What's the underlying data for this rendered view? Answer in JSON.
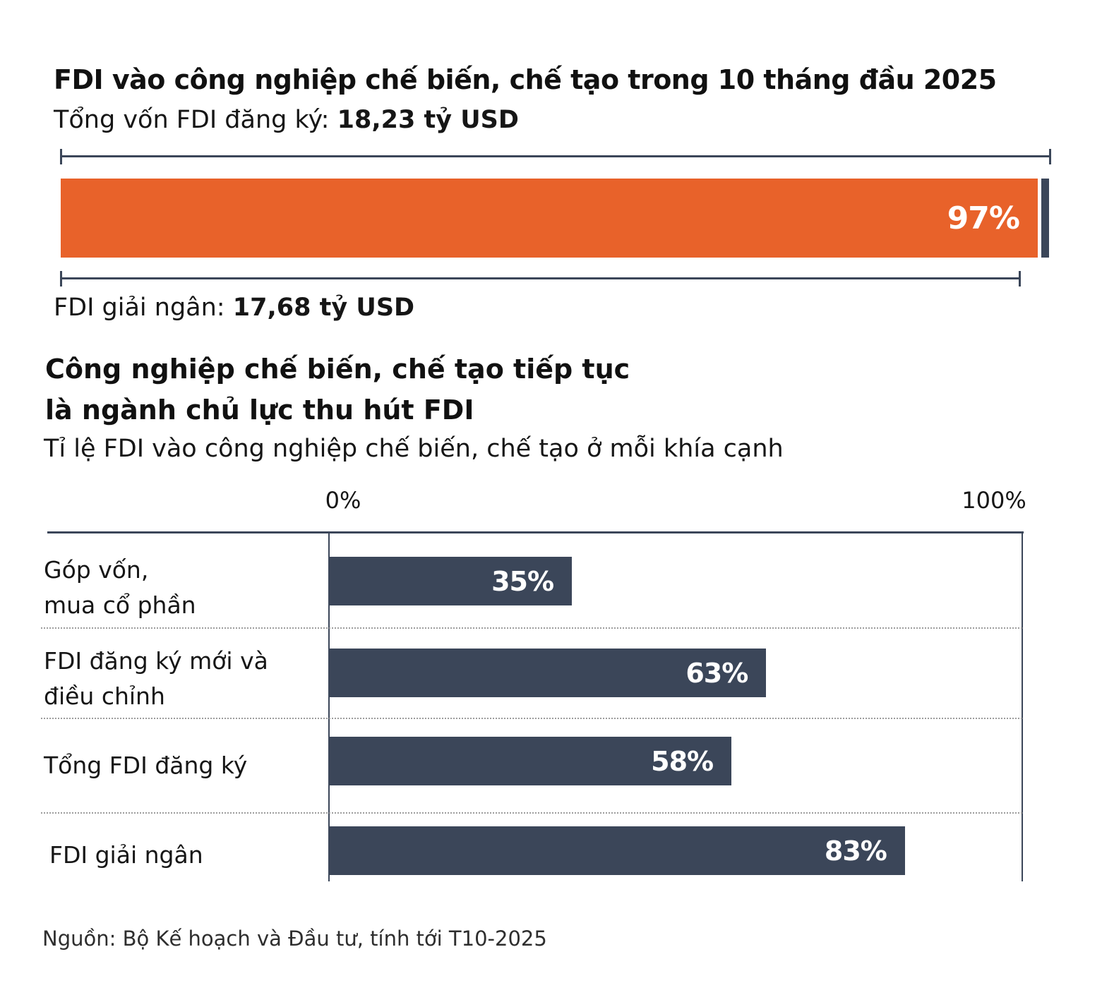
{
  "colors": {
    "accent_orange": "#E8622A",
    "navy": "#3B4659",
    "axis": "#3B4659",
    "row_separator": "#9C9C9C",
    "value_label_text": "#FFFFFF"
  },
  "chart_data": [
    {
      "type": "bar",
      "subtype": "progress-100-stacked",
      "title": "FDI vào công nghiệp chế biến, chế tạo trong 10 tháng đầu 2025",
      "total_label": "Tổng vốn FDI đăng ký:",
      "total_value": "18,23 tỷ USD",
      "filled_label": "FDI giải ngân:",
      "filled_value": "17,68 tỷ USD",
      "percent": 97,
      "percent_label": "97%",
      "bar_color": "#E8622A",
      "remainder_color": "#3B4659",
      "xlim": [
        0,
        100
      ]
    },
    {
      "type": "bar",
      "orientation": "horizontal",
      "title_lines": [
        "Công nghiệp chế biến, chế tạo tiếp tục",
        "là ngành chủ lực thu hút FDI"
      ],
      "subtitle": "Tỉ lệ FDI vào công nghiệp chế biến, chế tạo ở mỗi khía cạnh",
      "categories": [
        "Góp vốn, mua cổ phần",
        "FDI đăng ký mới và điều chỉnh",
        "Tổng FDI đăng ký",
        "FDI giải ngân"
      ],
      "category_lines": [
        [
          "Góp vốn,",
          "mua cổ phần"
        ],
        [
          "FDI đăng ký mới và",
          "điều chỉnh"
        ],
        [
          "Tổng FDI đăng ký"
        ],
        [
          "FDI giải ngân"
        ]
      ],
      "values": [
        35,
        63,
        58,
        83
      ],
      "value_labels": [
        "35%",
        "63%",
        "58%",
        "83%"
      ],
      "xlim": [
        0,
        100
      ],
      "x_tick_labels": [
        "0%",
        "100%"
      ],
      "bar_color": "#3B4659",
      "grid": "dotted row separators",
      "legend": "none"
    }
  ],
  "source_note": "Nguồn: Bộ Kế hoạch và Đầu tư, tính tới T10-2025"
}
